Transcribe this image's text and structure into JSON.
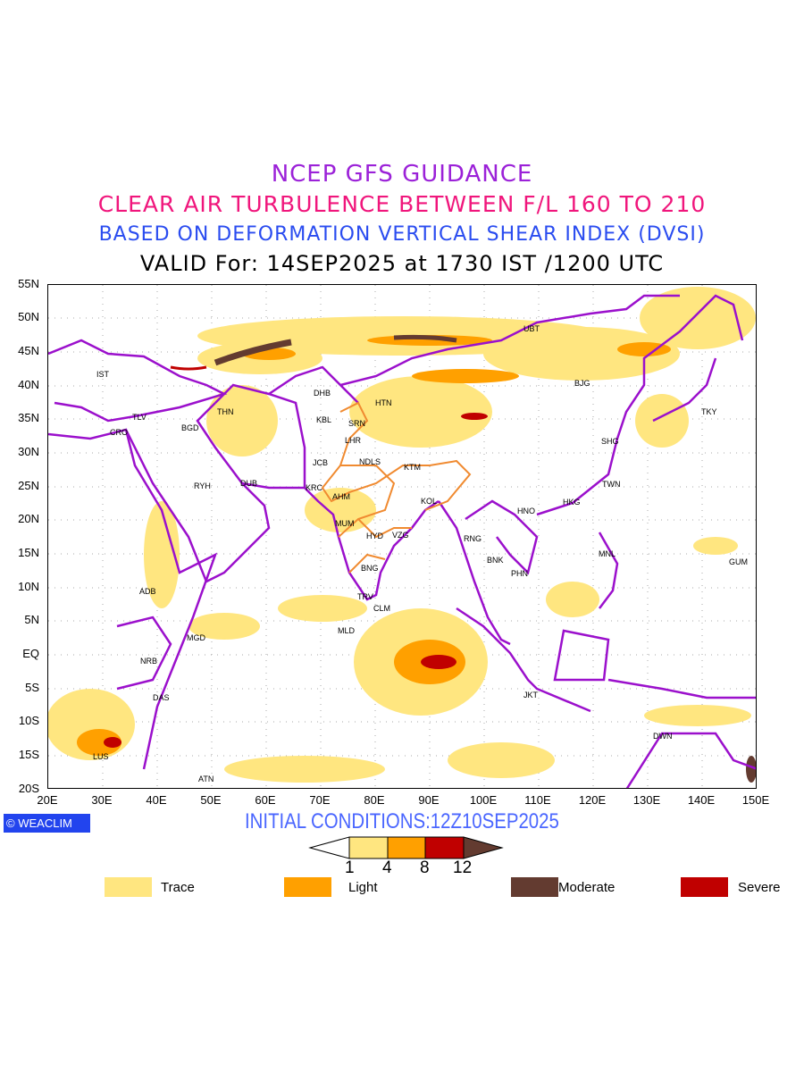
{
  "titles": {
    "line1": "NCEP GFS GUIDANCE",
    "line2": "CLEAR AIR TURBULENCE BETWEEN F/L 160 TO 210",
    "line3": "BASED ON DEFORMATION VERTICAL SHEAR INDEX (DVSI)",
    "line4": "VALID For: 14SEP2025 at 1730 IST /1200 UTC"
  },
  "axes": {
    "lat": [
      "55N",
      "50N",
      "45N",
      "40N",
      "35N",
      "30N",
      "25N",
      "20N",
      "15N",
      "10N",
      "5N",
      "EQ",
      "5S",
      "10S",
      "15S",
      "20S"
    ],
    "lon": [
      "20E",
      "30E",
      "40E",
      "50E",
      "60E",
      "70E",
      "80E",
      "90E",
      "100E",
      "110E",
      "120E",
      "130E",
      "140E",
      "150E"
    ]
  },
  "cities": [
    "IST",
    "TLV",
    "CRO",
    "BGD",
    "THN",
    "RYH",
    "DUB",
    "DHB",
    "KBL",
    "SRN",
    "LHR",
    "JCB",
    "NDLS",
    "KRC",
    "AHM",
    "MUM",
    "HYD",
    "VZG",
    "KOL",
    "KTM",
    "HTN",
    "BNG",
    "TRV",
    "CLM",
    "MLD",
    "ADB",
    "MGD",
    "NRB",
    "DAS",
    "LUS",
    "ATN",
    "UBT",
    "BJG",
    "TKY",
    "SHG",
    "TWN",
    "HKG",
    "HNO",
    "RNG",
    "BNK",
    "PHN",
    "MNL",
    "GUM",
    "JKT",
    "DWN"
  ],
  "badge": "WEACLIM",
  "initial_conditions": "INITIAL CONDITIONS:12Z10SEP2025",
  "colorbar": {
    "ticks": [
      "1",
      "4",
      "8",
      "12"
    ],
    "colors": [
      "#ffe680",
      "#ffa000",
      "#c00000",
      "#6b3a2a"
    ]
  },
  "legend": [
    {
      "label": "Trace",
      "color": "#ffe680"
    },
    {
      "label": "Light",
      "color": "#ffa000"
    },
    {
      "label": "Moderate",
      "color": "#633b30"
    },
    {
      "label": "Severe",
      "color": "#c00000"
    }
  ],
  "colors": {
    "border": "#9b10cc",
    "india_border": "#f08a30"
  }
}
